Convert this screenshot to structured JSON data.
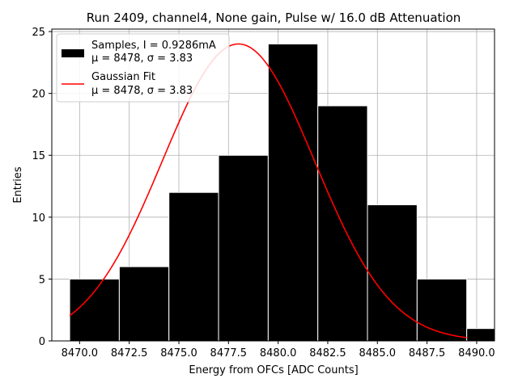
{
  "chart_data": {
    "type": "bar",
    "title": "Run 2409, channel4, None gain, Pulse w/ 16.0 dB Attenuation",
    "xlabel": "Energy from OFCs [ADC Counts]",
    "ylabel": "Entries",
    "xlim": [
      8468.6,
      8490.9
    ],
    "ylim": [
      0,
      25.2
    ],
    "xticks": [
      8470.0,
      8472.5,
      8475.0,
      8477.5,
      8480.0,
      8482.5,
      8485.0,
      8487.5,
      8490.0
    ],
    "xtick_labels": [
      "8470.0",
      "8472.5",
      "8475.0",
      "8477.5",
      "8480.0",
      "8482.5",
      "8485.0",
      "8487.5",
      "8490.0"
    ],
    "yticks": [
      0,
      5,
      10,
      15,
      20,
      25
    ],
    "ytick_labels": [
      "0",
      "5",
      "10",
      "15",
      "20",
      "25"
    ],
    "grid": true,
    "legend_position": "top-left",
    "bins": [
      {
        "left": 8469.5,
        "right": 8472.0,
        "count": 5
      },
      {
        "left": 8472.0,
        "right": 8474.5,
        "count": 6
      },
      {
        "left": 8474.5,
        "right": 8477.0,
        "count": 12
      },
      {
        "left": 8477.0,
        "right": 8479.5,
        "count": 15
      },
      {
        "left": 8479.5,
        "right": 8482.0,
        "count": 24
      },
      {
        "left": 8482.0,
        "right": 8484.5,
        "count": 19
      },
      {
        "left": 8484.5,
        "right": 8487.0,
        "count": 11
      },
      {
        "left": 8487.0,
        "right": 8489.5,
        "count": 5
      },
      {
        "left": 8489.5,
        "right": 8492.0,
        "count": 1
      }
    ],
    "series": [
      {
        "name": "Samples, I = 0.9286mA",
        "stats": "μ = 8478, σ = 3.83",
        "type": "histogram",
        "color": "#000000",
        "edge_color": "#ffffff"
      },
      {
        "name": "Gaussian Fit",
        "stats": "μ = 8478, σ = 3.83",
        "type": "line",
        "color": "#ff0000",
        "mu": 8478,
        "sigma": 3.83,
        "amplitude": 24.0,
        "x_range": [
          8469.5,
          8489.5
        ]
      }
    ]
  }
}
